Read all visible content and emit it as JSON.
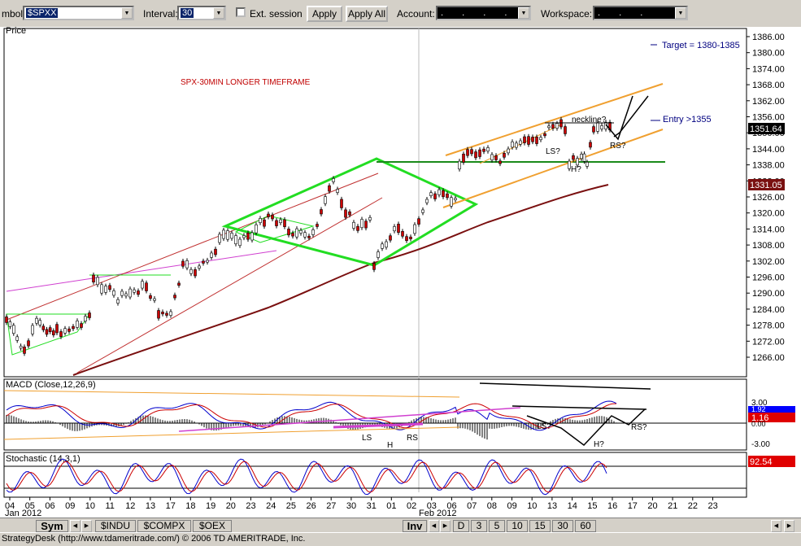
{
  "toolbar": {
    "symbol_label": "mbol:",
    "symbol_value": "$SPXX",
    "interval_label": "Interval:",
    "interval_value": "30",
    "ext_session_label": "Ext. session",
    "apply_label": "Apply",
    "apply_all_label": "Apply All",
    "account_label": "Account:",
    "account_value": ". . . . .",
    "workspace_label": "Workspace:",
    "workspace_value": ". . ."
  },
  "price_panel": {
    "title": "Price",
    "annotation_title": "SPX-30MIN LONGER TIMEFRAME",
    "target_label": "Target = 1380-1385",
    "entry_label": "Entry >1355",
    "neckline_label": "neckline?",
    "ls_label": "LS?",
    "h_label": "H?",
    "rs_label": "RS?",
    "last_price": "1351.64",
    "ma_price": "1331.05",
    "y_ticks": [
      "1386.00",
      "1380.00",
      "1374.00",
      "1368.00",
      "1362.00",
      "1356.00",
      "1350.00",
      "1344.00",
      "1338.00",
      "1332.00",
      "1326.00",
      "1320.00",
      "1314.00",
      "1308.00",
      "1302.00",
      "1296.00",
      "1290.00",
      "1284.00",
      "1278.00",
      "1272.00",
      "1266.00"
    ]
  },
  "macd_panel": {
    "title": "MACD (Close,12,26,9)",
    "ticks": [
      "3.00",
      "0.00",
      "-3.00"
    ],
    "value_blue": "1.92",
    "value_red": "1.16",
    "ls_label": "LS",
    "h_label": "H",
    "rs_label": "RS",
    "ls2_label": "LS?",
    "h2_label": "H?",
    "rs2_label": "RS?"
  },
  "stoch_panel": {
    "title": "Stochastic (14,3,1)",
    "value": "92.54"
  },
  "x_axis": {
    "ticks": [
      "04",
      "05",
      "06",
      "09",
      "10",
      "11",
      "12",
      "13",
      "17",
      "18",
      "19",
      "20",
      "23",
      "24",
      "25",
      "26",
      "27",
      "30",
      "31",
      "01",
      "02",
      "03",
      "06",
      "07",
      "08",
      "09",
      "10",
      "13",
      "14",
      "15",
      "16",
      "17",
      "20",
      "21",
      "22",
      "23"
    ],
    "month1": "Jan 2012",
    "month2": "Feb 2012"
  },
  "tabs": {
    "sym": "Sym",
    "indu": "$INDU",
    "compx": "$COMPX",
    "oex": "$OEX",
    "inv": "Inv",
    "intervals": [
      "D",
      "3",
      "5",
      "10",
      "15",
      "30",
      "60"
    ]
  },
  "status": {
    "text": "StrategyDesk (http://www.tdameritrade.com/) © 2006 TD AMERITRADE, Inc."
  },
  "colors": {
    "green_pattern": "#22dd22",
    "orange_channel": "#f0a030",
    "ma_line": "#7a1010",
    "fan_red": "#c03030",
    "fan_magenta": "#d040d0",
    "price_box_red": "#e00000",
    "value_blue": "#0000ff"
  },
  "icons": {
    "dropdown": "chevron-down-icon",
    "scroll_left": "arrow-left-icon",
    "scroll_right": "arrow-right-icon"
  }
}
